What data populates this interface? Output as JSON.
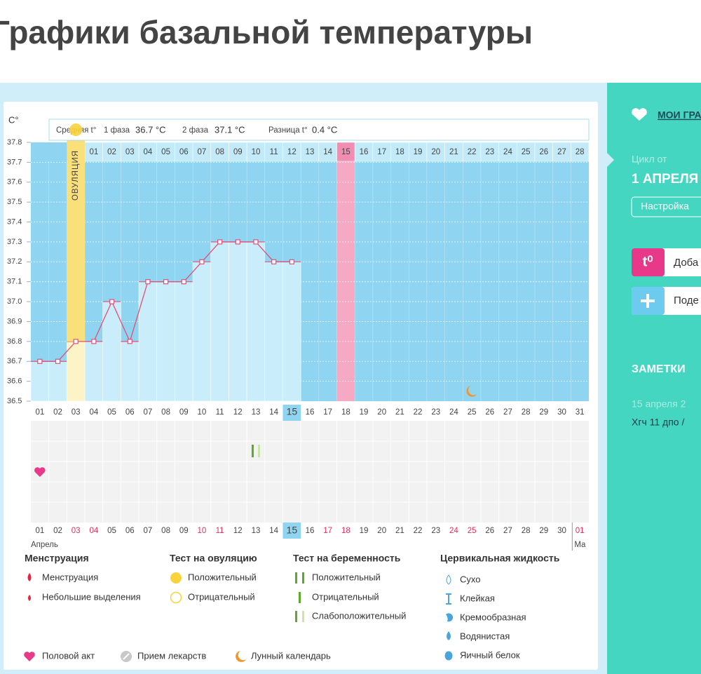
{
  "header": {
    "title": "Графики базальной температуры"
  },
  "chart_data": {
    "type": "line",
    "y_unit": "C°",
    "summary": {
      "avg_label": "Средняя t°",
      "phase1_label": "1 фаза",
      "phase1": "36.7 °C",
      "phase2_label": "2 фаза",
      "phase2": "37.1 °C",
      "diff_label": "Разница t°",
      "diff": "0.4 °C"
    },
    "ovulation_label": "ОВУЛЯЦИЯ",
    "ovulation_date": "03",
    "today": "15",
    "highlight_cycle_day": "15",
    "moon_date": "25",
    "categories": [
      "01",
      "02",
      "03",
      "04",
      "05",
      "06",
      "07",
      "08",
      "09",
      "10",
      "11",
      "12",
      "13",
      "14",
      "15",
      "16",
      "17",
      "18",
      "19",
      "20",
      "21",
      "22",
      "23",
      "24",
      "25",
      "26",
      "27",
      "28",
      "29",
      "30",
      "31"
    ],
    "cycle_days": [
      null,
      null,
      null,
      "01",
      "02",
      "03",
      "04",
      "05",
      "06",
      "07",
      "08",
      "09",
      "10",
      "11",
      "12",
      "13",
      "14",
      "15",
      "16",
      "17",
      "18",
      "19",
      "20",
      "21",
      "22",
      "23",
      "24",
      "25",
      "26",
      "27",
      "28"
    ],
    "values": [
      36.7,
      36.7,
      36.8,
      36.8,
      37.0,
      36.8,
      37.1,
      37.1,
      37.1,
      37.2,
      37.3,
      37.3,
      37.3,
      37.2,
      37.2,
      null,
      null,
      null,
      null,
      null,
      null,
      null,
      null,
      null,
      null,
      null,
      null,
      null,
      null,
      null,
      null
    ],
    "color": "#e0507a",
    "ylim": [
      36.5,
      37.8
    ],
    "yticks": [
      36.5,
      36.6,
      36.7,
      36.8,
      36.9,
      {
        "value": 37,
        "label": "37.0"
      },
      37.1,
      37.2,
      37.3,
      37.4,
      37.5,
      37.6,
      37.7,
      37.8
    ],
    "grid": true,
    "bottom_dates": [
      "01",
      "02",
      "03",
      "04",
      "05",
      "06",
      "07",
      "08",
      "09",
      "10",
      "11",
      "12",
      "13",
      "14",
      "15",
      "16",
      "17",
      "18",
      "19",
      "20",
      "21",
      "22",
      "23",
      "24",
      "25",
      "26",
      "27",
      "28",
      "29",
      "30",
      "01"
    ],
    "weekend": [
      false,
      false,
      true,
      true,
      false,
      false,
      false,
      false,
      false,
      true,
      true,
      false,
      false,
      false,
      false,
      false,
      true,
      true,
      false,
      false,
      false,
      false,
      false,
      true,
      true,
      false,
      false,
      false,
      false,
      false,
      true
    ],
    "month_labels": [
      "Апрель",
      "Ма"
    ],
    "events": [
      {
        "date": "01",
        "kind": "intercourse"
      },
      {
        "date": "13",
        "kind": "pregnancy_test"
      }
    ]
  },
  "legend": {
    "menstruation": {
      "title": "Менструация",
      "items": [
        "Менструация",
        "Небольшие выделения"
      ]
    },
    "ovulation_test": {
      "title": "Тест на овуляцию",
      "items": [
        "Положительный",
        "Отрицательный"
      ]
    },
    "pregnancy_test": {
      "title": "Тест на беременность",
      "items": [
        "Положительный",
        "Отрицательный",
        "Слабоположительный"
      ]
    },
    "cervical": {
      "title": "Цервикальная жидкость",
      "items": [
        "Сухо",
        "Клейкая",
        "Кремообразная",
        "Водянистая",
        "Яичный белок"
      ]
    },
    "other": [
      "Половой акт",
      "Прием лекарств",
      "Лунный календарь"
    ]
  },
  "sidebar": {
    "my_charts": "МОИ ГРА",
    "cycle_from": "Цикл от",
    "cycle_date": "1 АПРЕЛЯ",
    "settings": "Настройка",
    "add_icon": "t⁰",
    "add": "Доба",
    "share": "Поде",
    "notes": "ЗАМЕТКИ",
    "note_date": "15 апреля 2",
    "note_text": "Хгч 11 дпо /"
  }
}
